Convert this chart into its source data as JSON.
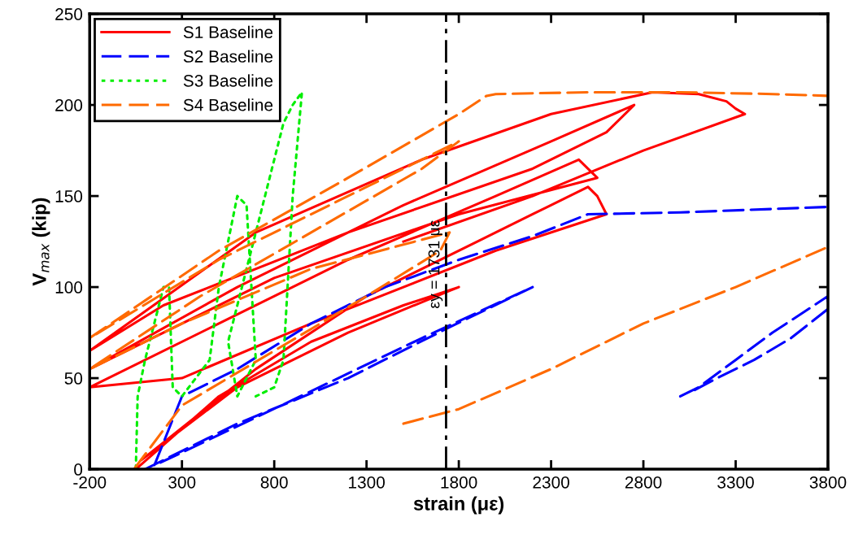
{
  "chart_data": {
    "type": "line",
    "xlabel": "strain (με)",
    "ylabel": "V$_{max}$ (kip)",
    "xlim": [
      -200,
      3800
    ],
    "xticks": [
      -200,
      300,
      800,
      1300,
      1800,
      2300,
      2800,
      3300,
      3800
    ],
    "ylim": [
      0,
      250
    ],
    "yticks": [
      0,
      50,
      100,
      150,
      200,
      250
    ],
    "grid": false,
    "legend": "top left",
    "marker": "none",
    "ref_lines": [
      {
        "axis": "x",
        "value": 1731,
        "label": "εy = 1731 με",
        "color": "#000000",
        "line_style": "dashed"
      }
    ],
    "series": [
      {
        "name": "S1 Baseline",
        "color": "#ff0000",
        "line_style": "solid",
        "x": [
          50,
          500,
          1000,
          1500,
          1800,
          1750,
          1200,
          600,
          80,
          700,
          1300,
          1900,
          2200,
          2500,
          2550,
          2600,
          2000,
          1000,
          300,
          -200,
          500,
          1200,
          2000,
          2450,
          2550,
          1800,
          800,
          -200,
          600,
          1500,
          2300,
          2750,
          2600,
          2200,
          1200,
          200,
          -200,
          700,
          1600,
          2300,
          2850,
          3100,
          3250,
          3300,
          3350,
          2800,
          2200,
          1500
        ],
        "values": [
          0,
          40,
          70,
          90,
          100,
          98,
          75,
          45,
          5,
          55,
          95,
          125,
          140,
          155,
          150,
          140,
          120,
          80,
          50,
          45,
          80,
          115,
          150,
          170,
          160,
          140,
          105,
          55,
          100,
          145,
          180,
          200,
          185,
          165,
          130,
          90,
          65,
          130,
          170,
          195,
          207,
          206,
          202,
          198,
          195,
          175,
          150,
          125
        ]
      },
      {
        "name": "S2 Baseline",
        "color": "#0000ff",
        "line_style": "dashed",
        "x": [
          100,
          600,
          1200,
          1750,
          2200,
          1600,
          900,
          150,
          300,
          600,
          1000,
          1400,
          1800,
          2200,
          2500,
          3000,
          3800,
          null,
          3000,
          3100,
          3300,
          3500,
          3800,
          3800,
          3600,
          3400,
          3200,
          3050
        ],
        "values": [
          0,
          25,
          50,
          78,
          100,
          72,
          38,
          2,
          40,
          55,
          80,
          100,
          115,
          128,
          140,
          141,
          144,
          null,
          40,
          45,
          60,
          75,
          95,
          88,
          72,
          60,
          50,
          42
        ]
      },
      {
        "name": "S3 Baseline",
        "color": "#00ee00",
        "line_style": "dotted",
        "x": [
          50,
          60,
          100,
          200,
          230,
          250,
          300,
          450,
          500,
          600,
          650,
          700,
          600,
          550,
          700,
          800,
          850,
          900,
          950,
          900,
          850,
          800,
          700
        ],
        "values": [
          0,
          40,
          60,
          100,
          100,
          45,
          40,
          60,
          100,
          150,
          145,
          60,
          40,
          70,
          130,
          170,
          190,
          200,
          207,
          150,
          60,
          45,
          40
        ]
      },
      {
        "name": "S4 Baseline",
        "color": "#ff6a00",
        "line_style": "dashed",
        "x": [
          40,
          300,
          800,
          1300,
          1700,
          1750,
          1000,
          300,
          -200,
          400,
          1000,
          1600,
          1800,
          1300,
          500,
          -200,
          500,
          1200,
          1800,
          1950,
          2000,
          2500,
          3000,
          3500,
          3800,
          null,
          1500,
          1800,
          2300,
          2800,
          3300,
          3800
        ],
        "values": [
          0,
          35,
          65,
          95,
          120,
          130,
          110,
          80,
          55,
          95,
          130,
          165,
          180,
          155,
          115,
          72,
          120,
          160,
          195,
          205,
          206,
          207,
          207,
          206,
          205,
          null,
          25,
          33,
          55,
          80,
          100,
          122
        ]
      }
    ]
  }
}
